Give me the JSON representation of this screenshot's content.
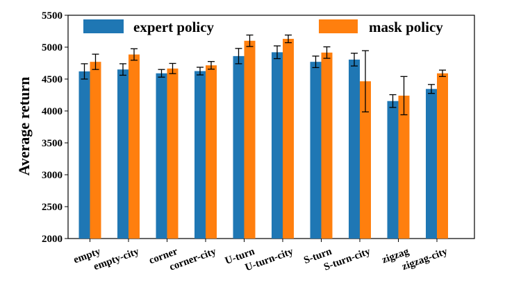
{
  "chart_data": {
    "type": "bar",
    "ylabel": "Average return",
    "xlabel": "",
    "ylim": [
      2000,
      5500
    ],
    "yticks": [
      2000,
      2500,
      3000,
      3500,
      4000,
      4500,
      5000,
      5500
    ],
    "categories": [
      "empty",
      "empty-city",
      "corner",
      "corner-city",
      "U-turn",
      "U-turn-city",
      "S-turn",
      "S-turn-city",
      "zigzag",
      "zigzag-city"
    ],
    "series": [
      {
        "name": "expert policy",
        "color": "#1f77b4",
        "values": [
          4620,
          4650,
          4590,
          4625,
          4860,
          4920,
          4770,
          4805,
          4155,
          4345
        ],
        "errors": [
          120,
          90,
          60,
          60,
          120,
          100,
          90,
          100,
          100,
          70
        ]
      },
      {
        "name": "mask policy",
        "color": "#ff7f0e",
        "values": [
          4770,
          4885,
          4665,
          4715,
          5100,
          5130,
          4915,
          4465,
          4240,
          4590
        ],
        "errors": [
          120,
          90,
          80,
          60,
          90,
          60,
          90,
          480,
          300,
          50
        ]
      }
    ],
    "legend": "top",
    "grid": false
  }
}
